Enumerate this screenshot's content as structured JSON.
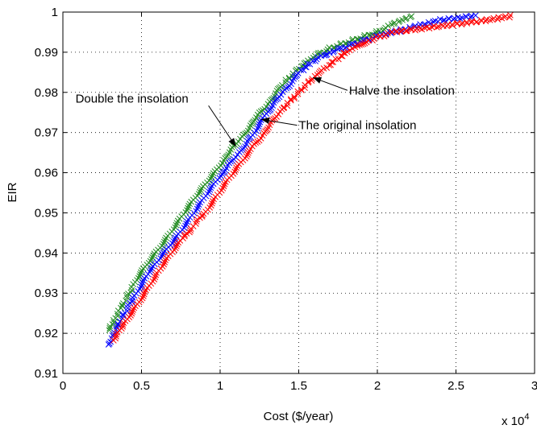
{
  "chart_data": {
    "type": "scatter",
    "xlabel": "Cost ($/year)",
    "ylabel": "EIR",
    "x_multiplier_label": "x 10",
    "x_multiplier_exp": "4",
    "xlim": [
      0,
      3
    ],
    "ylim": [
      0.91,
      1.0
    ],
    "xticks": [
      0,
      0.5,
      1,
      1.5,
      2,
      2.5,
      3
    ],
    "xtick_labels": [
      "0",
      "0.5",
      "1",
      "1.5",
      "2",
      "2.5",
      "3"
    ],
    "yticks": [
      0.91,
      0.92,
      0.93,
      0.94,
      0.95,
      0.96,
      0.97,
      0.98,
      0.99,
      1.0
    ],
    "ytick_labels": [
      "0.91",
      "0.92",
      "0.93",
      "0.94",
      "0.95",
      "0.96",
      "0.97",
      "0.98",
      "0.99",
      "1"
    ],
    "grid": true,
    "marker": "x",
    "series": [
      {
        "color": "#228B22",
        "x": [
          0.29,
          0.35,
          0.45,
          0.55,
          0.7,
          0.85,
          1.0,
          1.1,
          1.2,
          1.3,
          1.4,
          1.5,
          1.6,
          1.7,
          1.85,
          2.0,
          2.1,
          2.22
        ],
        "y": [
          0.921,
          0.925,
          0.932,
          0.938,
          0.946,
          0.954,
          0.962,
          0.967,
          0.972,
          0.977,
          0.982,
          0.986,
          0.989,
          0.991,
          0.993,
          0.995,
          0.997,
          0.999
        ]
      },
      {
        "color": "#0000FF",
        "x": [
          0.29,
          0.35,
          0.45,
          0.55,
          0.7,
          0.85,
          1.0,
          1.1,
          1.2,
          1.3,
          1.4,
          1.5,
          1.6,
          1.7,
          1.85,
          2.0,
          2.2,
          2.4,
          2.62
        ],
        "y": [
          0.917,
          0.922,
          0.929,
          0.935,
          0.943,
          0.951,
          0.959,
          0.964,
          0.969,
          0.975,
          0.98,
          0.985,
          0.988,
          0.99,
          0.992,
          0.994,
          0.996,
          0.998,
          0.999
        ]
      },
      {
        "color": "#FF0000",
        "x": [
          0.32,
          0.4,
          0.5,
          0.6,
          0.75,
          0.9,
          1.05,
          1.2,
          1.3,
          1.4,
          1.5,
          1.6,
          1.7,
          1.8,
          1.95,
          2.1,
          2.3,
          2.5,
          2.7,
          2.85
        ],
        "y": [
          0.918,
          0.923,
          0.929,
          0.935,
          0.943,
          0.95,
          0.958,
          0.966,
          0.971,
          0.976,
          0.98,
          0.984,
          0.987,
          0.99,
          0.993,
          0.995,
          0.996,
          0.997,
          0.998,
          0.999
        ]
      }
    ],
    "annotations": [
      {
        "text": "Double the insolation",
        "tx": 0.08,
        "ty": 0.9775,
        "ax": 1.1,
        "ay": 0.9665
      },
      {
        "text": "Halve the insolation",
        "tx": 1.82,
        "ty": 0.9795,
        "ax": 1.59,
        "ay": 0.9837
      },
      {
        "text": "The original insolation",
        "tx": 1.5,
        "ty": 0.9708,
        "ax": 1.26,
        "ay": 0.9733
      }
    ]
  }
}
